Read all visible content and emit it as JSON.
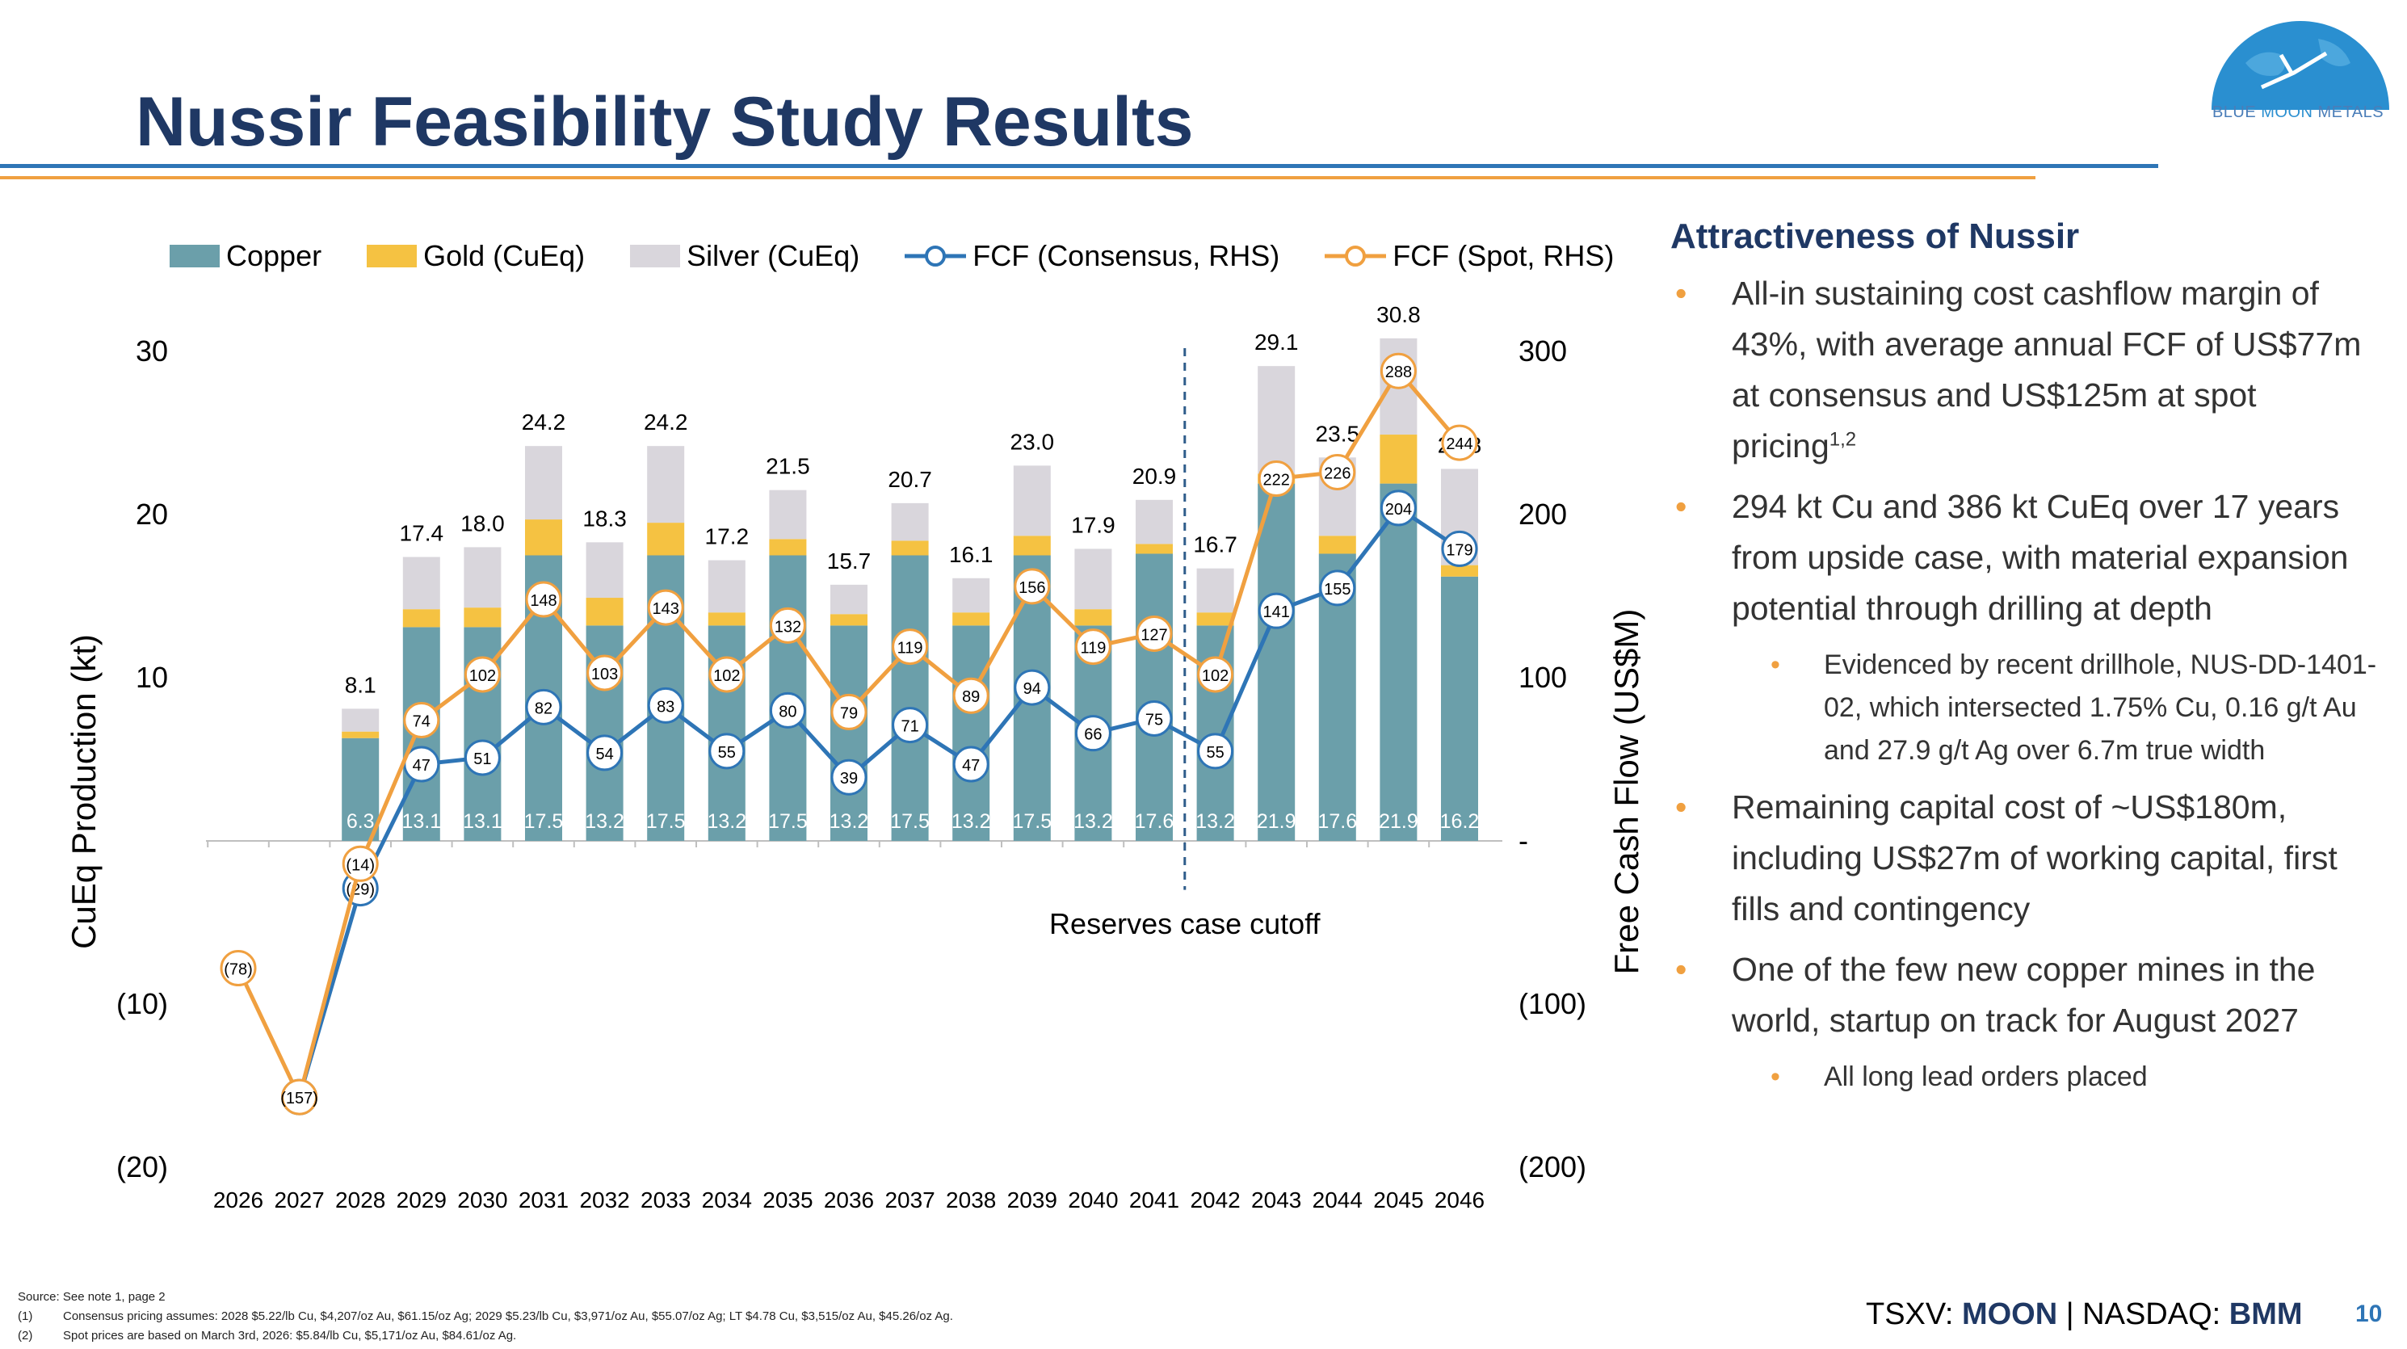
{
  "header": {
    "title": "Nussir Feasibility Study Results",
    "logo_text_1": "BLUE ",
    "logo_text_2": "MOON",
    "logo_text_3": " METALS"
  },
  "colors": {
    "copper": "#6b9faa",
    "gold": "#f5c242",
    "silver": "#d9d6dc",
    "fcf_consensus": "#2e75b6",
    "fcf_spot": "#f0a040",
    "title": "#1f3864"
  },
  "chart_data": {
    "type": "bar",
    "stacked": true,
    "categories": [
      "2026",
      "2027",
      "2028",
      "2029",
      "2030",
      "2031",
      "2032",
      "2033",
      "2034",
      "2035",
      "2036",
      "2037",
      "2038",
      "2039",
      "2040",
      "2041",
      "2042",
      "2043",
      "2044",
      "2045",
      "2046"
    ],
    "series": [
      {
        "name": "Copper",
        "axis": "left",
        "values": [
          null,
          null,
          6.3,
          13.1,
          13.1,
          17.5,
          13.2,
          17.5,
          13.2,
          17.5,
          13.2,
          17.5,
          13.2,
          17.5,
          13.2,
          17.6,
          13.2,
          21.9,
          17.6,
          21.9,
          16.2
        ]
      },
      {
        "name": "Gold (CuEq)",
        "axis": "left",
        "values": [
          null,
          null,
          0.4,
          1.1,
          1.2,
          2.2,
          1.7,
          2.0,
          0.8,
          1.0,
          0.7,
          0.9,
          0.8,
          1.2,
          1.0,
          0.6,
          0.8,
          0.6,
          1.1,
          3.0,
          0.7
        ]
      },
      {
        "name": "Silver (CuEq)",
        "axis": "left",
        "values": [
          null,
          null,
          1.4,
          3.2,
          3.7,
          4.5,
          3.4,
          4.7,
          3.2,
          3.0,
          1.8,
          2.3,
          2.1,
          4.3,
          3.7,
          2.7,
          2.7,
          6.6,
          4.8,
          5.9,
          5.9
        ]
      },
      {
        "name": "FCF (Consensus, RHS)",
        "axis": "right",
        "type": "line",
        "values": [
          null,
          -157,
          -29,
          47,
          51,
          82,
          54,
          83,
          55,
          80,
          39,
          71,
          47,
          94,
          66,
          75,
          55,
          141,
          155,
          204,
          179
        ]
      },
      {
        "name": "FCF (Spot, RHS)",
        "axis": "right",
        "type": "line",
        "values": [
          -78,
          -157,
          -14,
          74,
          102,
          148,
          103,
          143,
          102,
          132,
          79,
          119,
          89,
          156,
          119,
          127,
          102,
          222,
          226,
          288,
          244
        ]
      }
    ],
    "bar_copper_labels": [
      "",
      "",
      "6.3",
      "13.1",
      "13.1",
      "17.5",
      "13.2",
      "17.5",
      "13.2",
      "17.5",
      "13.2",
      "17.5",
      "13.2",
      "17.5",
      "13.2",
      "17.6",
      "13.2",
      "21.9",
      "17.6",
      "21.9",
      "16.2"
    ],
    "bar_total_labels": [
      "",
      "",
      "8.1",
      "17.4",
      "18.0",
      "24.2",
      "18.3",
      "24.2",
      "17.2",
      "21.5",
      "15.7",
      "20.7",
      "16.1",
      "23.0",
      "17.9",
      "20.9",
      "16.7",
      "29.1",
      "23.5",
      "30.8",
      "22.8"
    ],
    "consensus_labels": [
      "",
      "(157)",
      "(29)",
      "47",
      "51",
      "82",
      "54",
      "83",
      "55",
      "80",
      "39",
      "71",
      "47",
      "94",
      "66",
      "75",
      "55",
      "141",
      "155",
      "204",
      "179"
    ],
    "spot_labels": [
      "(78)",
      "(157)",
      "(14)",
      "74",
      "102",
      "148",
      "103",
      "143",
      "102",
      "132",
      "79",
      "119",
      "89",
      "156",
      "119",
      "127",
      "102",
      "222",
      "226",
      "288",
      "244"
    ],
    "left_axis": {
      "label": "CuEq Production (kt)",
      "ticks": [
        "30",
        "20",
        "10",
        "",
        "(10)",
        "(20)"
      ],
      "range": [
        -20,
        30
      ]
    },
    "right_axis": {
      "label": "Free Cash Flow (US$M)",
      "ticks": [
        "300",
        "200",
        "100",
        "-",
        "(100)",
        "(200)"
      ],
      "range": [
        -200,
        300
      ]
    },
    "annotation": "Reserves case cutoff",
    "cutoff_after": "2041",
    "legend_position": "top"
  },
  "sidebar": {
    "heading": "Attractiveness of Nussir",
    "bullets": [
      {
        "level": 1,
        "text": "All-in sustaining cost cashflow margin of 43%, with average annual FCF of US$77m at consensus and US$125m at spot pricing",
        "sup": "1,2"
      },
      {
        "level": 1,
        "text": "294 kt Cu and 386 kt CuEq over 17 years from upside case, with material expansion potential through drilling at depth"
      },
      {
        "level": 2,
        "text": "Evidenced by recent drillhole, NUS-DD-1401-02, which intersected 1.75% Cu, 0.16 g/t Au and 27.9 g/t Ag over 6.7m true width"
      },
      {
        "level": 1,
        "text": "Remaining capital cost of ~US$180m, including US$27m of working capital, first fills and contingency"
      },
      {
        "level": 1,
        "text": "One of the few new copper mines in the world, startup on track for August 2027"
      },
      {
        "level": 2,
        "text": "All long lead orders placed"
      }
    ]
  },
  "footer": {
    "source": "Source: See note 1, page 2",
    "note1_num": "(1)",
    "note1": "Consensus pricing assumes: 2028 $5.22/lb Cu, $4,207/oz Au, $61.15/oz Ag; 2029 $5.23/lb Cu, $3,971/oz Au, $55.07/oz Ag; LT $4.78 Cu, $3,515/oz Au, $45.26/oz Ag.",
    "note2_num": "(2)",
    "note2": "Spot prices are based on March 3rd, 2026: $5.84/lb Cu, $5,171/oz Au, $84.61/oz Ag.",
    "ticker_prefix": "TSXV: ",
    "ticker_1": "MOON",
    "ticker_sep": " | NASDAQ: ",
    "ticker_2": "BMM",
    "page_number": "10"
  }
}
